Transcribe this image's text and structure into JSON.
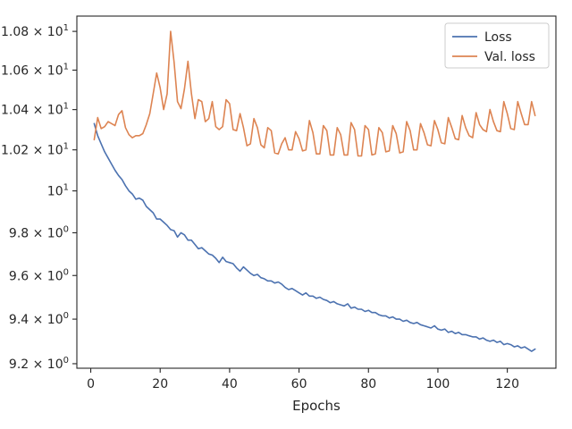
{
  "chart_data": {
    "type": "line",
    "title": "",
    "xlabel": "Epochs",
    "ylabel": "",
    "yscale": "log",
    "xlim": [
      -4,
      134
    ],
    "ylim": [
      9.18,
      10.88
    ],
    "grid": false,
    "legend_position": "top-right",
    "xticks": [
      0,
      20,
      40,
      60,
      80,
      100,
      120
    ],
    "xtick_labels": [
      "0",
      "20",
      "40",
      "60",
      "80",
      "100",
      "120"
    ],
    "yticks": [
      {
        "value": 9.2,
        "mantissa": "9.2",
        "base": "10",
        "exp": "0"
      },
      {
        "value": 9.4,
        "mantissa": "9.4",
        "base": "10",
        "exp": "0"
      },
      {
        "value": 9.6,
        "mantissa": "9.6",
        "base": "10",
        "exp": "0"
      },
      {
        "value": 9.8,
        "mantissa": "9.8",
        "base": "10",
        "exp": "0"
      },
      {
        "value": 10.0,
        "mantissa": "",
        "base": "10",
        "exp": "1"
      },
      {
        "value": 10.2,
        "mantissa": "1.02",
        "base": "10",
        "exp": "1"
      },
      {
        "value": 10.4,
        "mantissa": "1.04",
        "base": "10",
        "exp": "1"
      },
      {
        "value": 10.6,
        "mantissa": "1.06",
        "base": "10",
        "exp": "1"
      },
      {
        "value": 10.8,
        "mantissa": "1.08",
        "base": "10",
        "exp": "1"
      }
    ],
    "series": [
      {
        "name": "Loss",
        "color": "#4c72b0",
        "x": [
          1,
          2,
          3,
          4,
          5,
          6,
          7,
          8,
          9,
          10,
          11,
          12,
          13,
          14,
          15,
          16,
          17,
          18,
          19,
          20,
          21,
          22,
          23,
          24,
          25,
          26,
          27,
          28,
          29,
          30,
          31,
          32,
          33,
          34,
          35,
          36,
          37,
          38,
          39,
          40,
          41,
          42,
          43,
          44,
          45,
          46,
          47,
          48,
          49,
          50,
          51,
          52,
          53,
          54,
          55,
          56,
          57,
          58,
          59,
          60,
          61,
          62,
          63,
          64,
          65,
          66,
          67,
          68,
          69,
          70,
          71,
          72,
          73,
          74,
          75,
          76,
          77,
          78,
          79,
          80,
          81,
          82,
          83,
          84,
          85,
          86,
          87,
          88,
          89,
          90,
          91,
          92,
          93,
          94,
          95,
          96,
          97,
          98,
          99,
          100,
          101,
          102,
          103,
          104,
          105,
          106,
          107,
          108,
          109,
          110,
          111,
          112,
          113,
          114,
          115,
          116,
          117,
          118,
          119,
          120,
          121,
          122,
          123,
          124,
          125,
          126,
          127,
          128
        ],
        "values": [
          10.33,
          10.27,
          10.23,
          10.19,
          10.16,
          10.13,
          10.1,
          10.075,
          10.055,
          10.025,
          10.0,
          9.985,
          9.96,
          9.965,
          9.955,
          9.925,
          9.91,
          9.895,
          9.865,
          9.865,
          9.85,
          9.835,
          9.815,
          9.81,
          9.78,
          9.8,
          9.79,
          9.765,
          9.765,
          9.745,
          9.725,
          9.73,
          9.715,
          9.7,
          9.695,
          9.68,
          9.66,
          9.685,
          9.665,
          9.66,
          9.655,
          9.635,
          9.62,
          9.64,
          9.625,
          9.61,
          9.6,
          9.605,
          9.59,
          9.585,
          9.575,
          9.575,
          9.565,
          9.57,
          9.56,
          9.545,
          9.535,
          9.54,
          9.53,
          9.52,
          9.51,
          9.52,
          9.505,
          9.505,
          9.495,
          9.5,
          9.49,
          9.485,
          9.475,
          9.48,
          9.47,
          9.465,
          9.46,
          9.47,
          9.45,
          9.455,
          9.445,
          9.445,
          9.435,
          9.44,
          9.43,
          9.43,
          9.42,
          9.415,
          9.415,
          9.405,
          9.41,
          9.4,
          9.4,
          9.39,
          9.395,
          9.385,
          9.38,
          9.385,
          9.375,
          9.37,
          9.365,
          9.36,
          9.37,
          9.355,
          9.35,
          9.355,
          9.34,
          9.345,
          9.335,
          9.34,
          9.33,
          9.33,
          9.325,
          9.32,
          9.32,
          9.31,
          9.315,
          9.305,
          9.3,
          9.305,
          9.295,
          9.3,
          9.285,
          9.29,
          9.285,
          9.275,
          9.28,
          9.27,
          9.275,
          9.265,
          9.255,
          9.265
        ]
      },
      {
        "name": "Val. loss",
        "color": "#dd8452",
        "x": [
          1,
          2,
          3,
          4,
          5,
          6,
          7,
          8,
          9,
          10,
          11,
          12,
          13,
          14,
          15,
          16,
          17,
          18,
          19,
          20,
          21,
          22,
          23,
          24,
          25,
          26,
          27,
          28,
          29,
          30,
          31,
          32,
          33,
          34,
          35,
          36,
          37,
          38,
          39,
          40,
          41,
          42,
          43,
          44,
          45,
          46,
          47,
          48,
          49,
          50,
          51,
          52,
          53,
          54,
          55,
          56,
          57,
          58,
          59,
          60,
          61,
          62,
          63,
          64,
          65,
          66,
          67,
          68,
          69,
          70,
          71,
          72,
          73,
          74,
          75,
          76,
          77,
          78,
          79,
          80,
          81,
          82,
          83,
          84,
          85,
          86,
          87,
          88,
          89,
          90,
          91,
          92,
          93,
          94,
          95,
          96,
          97,
          98,
          99,
          100,
          101,
          102,
          103,
          104,
          105,
          106,
          107,
          108,
          109,
          110,
          111,
          112,
          113,
          114,
          115,
          116,
          117,
          118,
          119,
          120,
          121,
          122,
          123,
          124,
          125,
          126,
          127,
          128
        ],
        "values": [
          10.25,
          10.36,
          10.305,
          10.315,
          10.34,
          10.33,
          10.32,
          10.375,
          10.395,
          10.31,
          10.275,
          10.26,
          10.27,
          10.27,
          10.28,
          10.325,
          10.38,
          10.48,
          10.585,
          10.51,
          10.4,
          10.48,
          10.8,
          10.64,
          10.44,
          10.405,
          10.505,
          10.645,
          10.48,
          10.355,
          10.45,
          10.44,
          10.34,
          10.355,
          10.44,
          10.315,
          10.3,
          10.315,
          10.45,
          10.43,
          10.3,
          10.295,
          10.38,
          10.31,
          10.22,
          10.23,
          10.355,
          10.31,
          10.225,
          10.21,
          10.31,
          10.295,
          10.185,
          10.18,
          10.23,
          10.26,
          10.2,
          10.2,
          10.29,
          10.255,
          10.195,
          10.2,
          10.345,
          10.285,
          10.18,
          10.18,
          10.32,
          10.295,
          10.175,
          10.175,
          10.31,
          10.275,
          10.175,
          10.175,
          10.335,
          10.3,
          10.17,
          10.17,
          10.32,
          10.3,
          10.175,
          10.18,
          10.31,
          10.285,
          10.19,
          10.195,
          10.32,
          10.28,
          10.185,
          10.19,
          10.34,
          10.295,
          10.2,
          10.2,
          10.33,
          10.285,
          10.225,
          10.22,
          10.345,
          10.3,
          10.235,
          10.23,
          10.36,
          10.31,
          10.255,
          10.25,
          10.37,
          10.31,
          10.27,
          10.26,
          10.385,
          10.325,
          10.3,
          10.29,
          10.4,
          10.34,
          10.295,
          10.29,
          10.44,
          10.38,
          10.305,
          10.3,
          10.44,
          10.38,
          10.325,
          10.325,
          10.44,
          10.37
        ]
      }
    ]
  }
}
